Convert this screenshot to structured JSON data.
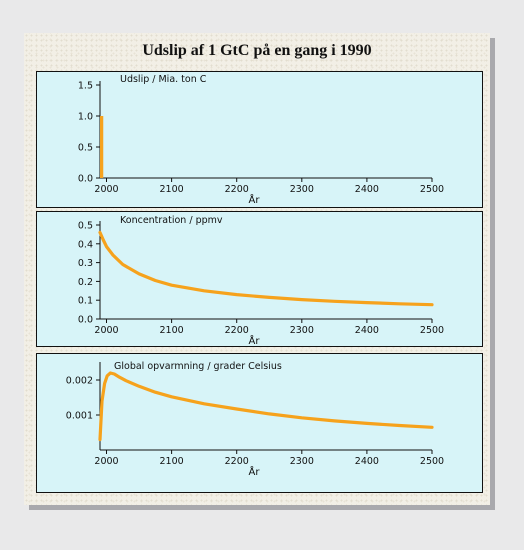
{
  "title": "Udslip af 1 GtC på en gang i 1990",
  "colors": {
    "page_background": "#e9e9ea",
    "frame_background": "#f2efe6",
    "plot_background": "#d7f4f8",
    "series": "#f6a21c"
  },
  "chart_data": [
    {
      "type": "line",
      "title": "Udslip / Mia. ton C",
      "xlabel": "År",
      "ylabel": "",
      "xlim": [
        1990,
        2500
      ],
      "ylim": [
        0,
        1.5
      ],
      "xticks": [
        2000,
        2100,
        2200,
        2300,
        2400,
        2500
      ],
      "yticks": [
        0.0,
        0.5,
        1.0,
        1.5
      ],
      "ytick_labels": [
        "0.0",
        "0.5",
        "1.0",
        "1.5"
      ],
      "grid": false,
      "series": [
        {
          "x": [
            1990,
            1990,
            1995,
            1995
          ],
          "y": [
            0,
            1.0,
            1.0,
            0
          ]
        }
      ]
    },
    {
      "type": "line",
      "title": "Koncentration / ppmv",
      "xlabel": "År",
      "ylabel": "",
      "xlim": [
        1990,
        2500
      ],
      "ylim": [
        0,
        0.5
      ],
      "xticks": [
        2000,
        2100,
        2200,
        2300,
        2400,
        2500
      ],
      "yticks": [
        0.0,
        0.1,
        0.2,
        0.3,
        0.4,
        0.5
      ],
      "ytick_labels": [
        "0.0",
        "0.1",
        "0.2",
        "0.3",
        "0.4",
        "0.5"
      ],
      "grid": false,
      "series": [
        {
          "x": [
            1990,
            1995,
            2000,
            2010,
            2025,
            2050,
            2075,
            2100,
            2150,
            2200,
            2250,
            2300,
            2350,
            2400,
            2450,
            2500
          ],
          "y": [
            0.46,
            0.42,
            0.385,
            0.34,
            0.29,
            0.24,
            0.205,
            0.18,
            0.15,
            0.13,
            0.115,
            0.103,
            0.094,
            0.087,
            0.081,
            0.076
          ]
        }
      ]
    },
    {
      "type": "line",
      "title": "Global opvarmning / grader Celsius",
      "xlabel": "År",
      "ylabel": "",
      "xlim": [
        1990,
        2500
      ],
      "ylim": [
        0,
        0.0024
      ],
      "xticks": [
        2000,
        2100,
        2200,
        2300,
        2400,
        2500
      ],
      "yticks": [
        0.001,
        0.002
      ],
      "ytick_labels": [
        "0.001",
        "0.002"
      ],
      "grid": false,
      "series": [
        {
          "x": [
            1990,
            1993,
            1997,
            2001,
            2006,
            2012,
            2020,
            2030,
            2050,
            2075,
            2100,
            2150,
            2200,
            2250,
            2300,
            2350,
            2400,
            2450,
            2500
          ],
          "y": [
            0.0003,
            0.0014,
            0.0019,
            0.00212,
            0.0022,
            0.00217,
            0.00208,
            0.00198,
            0.00182,
            0.00165,
            0.00152,
            0.00132,
            0.00117,
            0.00103,
            0.00092,
            0.00083,
            0.00076,
            0.0007,
            0.00065
          ]
        }
      ]
    }
  ]
}
